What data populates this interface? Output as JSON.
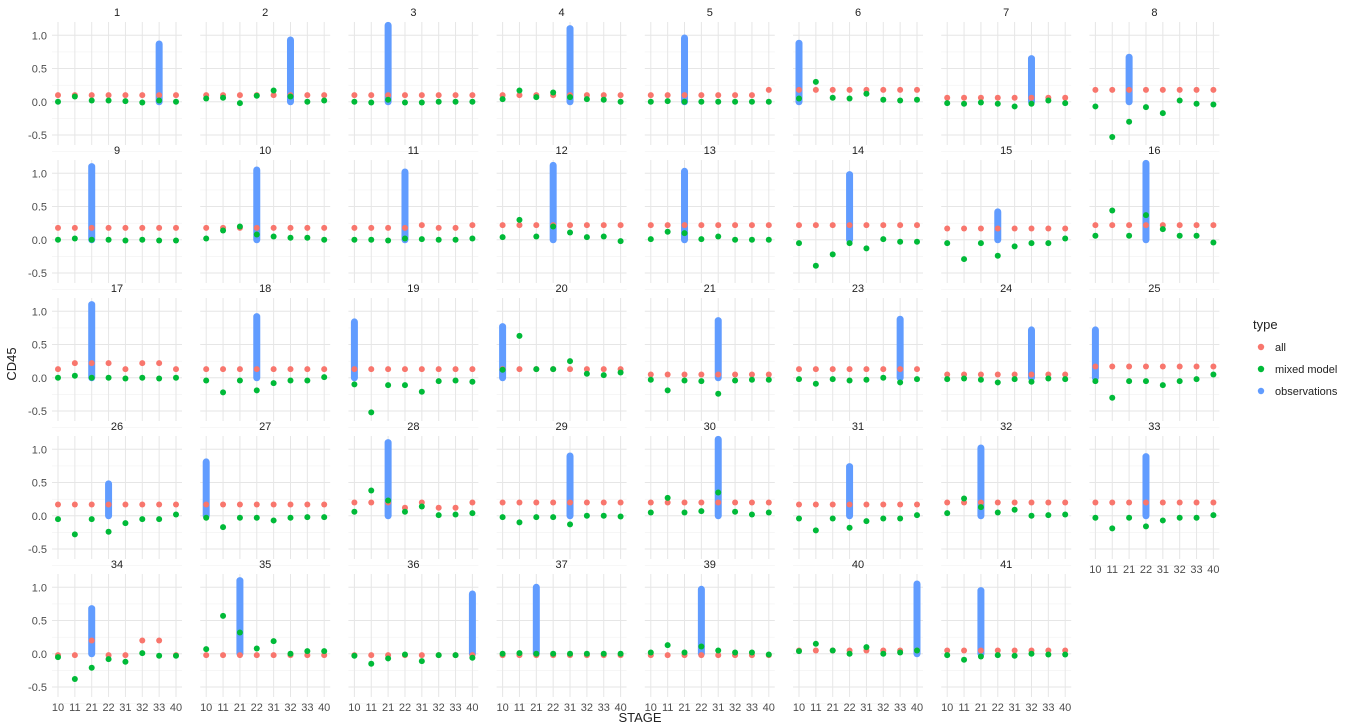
{
  "chart_data": {
    "type": "scatter",
    "xlabel": "STAGE",
    "ylabel": "CD45",
    "x_categories": [
      "10",
      "11",
      "21",
      "22",
      "31",
      "32",
      "33",
      "40"
    ],
    "y_ticks": [
      "-0.5",
      "0.0",
      "0.5",
      "1.0"
    ],
    "ylim": [
      -0.65,
      1.2
    ],
    "grid": true,
    "legend": {
      "title": "type",
      "position": "right",
      "entries": [
        {
          "label": "all",
          "color": "#F8766D"
        },
        {
          "label": "mixed model",
          "color": "#00BA38"
        },
        {
          "label": "observations",
          "color": "#619CFF"
        }
      ]
    },
    "facets": [
      {
        "label": "1",
        "obs_stage": "33",
        "obs_max": 0.87,
        "all": [
          0.1,
          0.1,
          0.1,
          0.1,
          0.1,
          0.1,
          0.1,
          0.1
        ],
        "mixed": [
          0.0,
          0.08,
          0.02,
          0.02,
          0.01,
          -0.01,
          0.02,
          0.0
        ]
      },
      {
        "label": "2",
        "obs_stage": "32",
        "obs_max": 0.93,
        "all": [
          0.1,
          0.1,
          0.1,
          0.1,
          0.1,
          0.1,
          0.1,
          0.1
        ],
        "mixed": [
          0.05,
          0.06,
          -0.02,
          0.09,
          0.17,
          0.08,
          0.0,
          0.02
        ]
      },
      {
        "label": "3",
        "obs_stage": "21",
        "obs_max": 1.15,
        "all": [
          0.1,
          0.1,
          0.1,
          0.1,
          0.1,
          0.1,
          0.1,
          0.1
        ],
        "mixed": [
          0.0,
          -0.01,
          0.03,
          -0.01,
          -0.01,
          0.0,
          0.0,
          0.0
        ]
      },
      {
        "label": "4",
        "obs_stage": "31",
        "obs_max": 1.1,
        "all": [
          0.1,
          0.1,
          0.1,
          0.1,
          0.1,
          0.1,
          0.1,
          0.1
        ],
        "mixed": [
          0.04,
          0.17,
          0.07,
          0.14,
          0.07,
          0.04,
          0.03,
          0.0
        ]
      },
      {
        "label": "5",
        "obs_stage": "21",
        "obs_max": 0.96,
        "all": [
          0.1,
          0.1,
          0.1,
          0.1,
          0.1,
          0.1,
          0.1,
          0.18
        ],
        "mixed": [
          0.0,
          0.01,
          0.0,
          0.0,
          0.0,
          0.0,
          0.0,
          0.0
        ]
      },
      {
        "label": "6",
        "obs_stage": "10",
        "obs_max": 0.88,
        "all": [
          0.18,
          0.18,
          0.18,
          0.18,
          0.18,
          0.18,
          0.18,
          0.18
        ],
        "mixed": [
          0.05,
          0.3,
          0.06,
          0.05,
          0.12,
          0.03,
          0.02,
          0.03
        ]
      },
      {
        "label": "7",
        "obs_stage": "32",
        "obs_max": 0.65,
        "all": [
          0.06,
          0.06,
          0.06,
          0.06,
          0.06,
          0.06,
          0.06,
          0.06
        ],
        "mixed": [
          -0.02,
          -0.03,
          -0.01,
          -0.03,
          -0.07,
          -0.03,
          0.02,
          -0.02
        ]
      },
      {
        "label": "8",
        "obs_stage": "21",
        "obs_max": 0.67,
        "all": [
          0.18,
          0.18,
          0.18,
          0.18,
          0.18,
          0.18,
          0.18,
          0.18
        ],
        "mixed": [
          -0.07,
          -0.53,
          -0.3,
          -0.08,
          -0.17,
          0.02,
          -0.03,
          -0.04
        ]
      },
      {
        "label": "9",
        "obs_stage": "21",
        "obs_max": 1.1,
        "all": [
          0.18,
          0.18,
          0.18,
          0.18,
          0.18,
          0.18,
          0.18,
          0.18
        ],
        "mixed": [
          0.0,
          0.02,
          0.0,
          0.0,
          -0.01,
          0.0,
          -0.01,
          -0.01
        ]
      },
      {
        "label": "10",
        "obs_stage": "22",
        "obs_max": 1.05,
        "all": [
          0.18,
          0.18,
          0.18,
          0.18,
          0.18,
          0.18,
          0.18,
          0.18
        ],
        "mixed": [
          0.02,
          0.14,
          0.2,
          0.08,
          0.05,
          0.03,
          0.03,
          0.0
        ]
      },
      {
        "label": "11",
        "obs_stage": "22",
        "obs_max": 1.02,
        "all": [
          0.18,
          0.18,
          0.18,
          0.18,
          0.22,
          0.18,
          0.18,
          0.22
        ],
        "mixed": [
          0.0,
          0.0,
          -0.01,
          0.02,
          0.01,
          0.0,
          0.0,
          0.02
        ]
      },
      {
        "label": "12",
        "obs_stage": "22",
        "obs_max": 1.12,
        "all": [
          0.22,
          0.22,
          0.22,
          0.22,
          0.22,
          0.22,
          0.22,
          0.22
        ],
        "mixed": [
          0.04,
          0.3,
          0.05,
          0.2,
          0.11,
          0.04,
          0.05,
          -0.02
        ]
      },
      {
        "label": "13",
        "obs_stage": "21",
        "obs_max": 1.03,
        "all": [
          0.22,
          0.22,
          0.22,
          0.22,
          0.22,
          0.22,
          0.22,
          0.22
        ],
        "mixed": [
          0.01,
          0.12,
          0.1,
          0.01,
          0.05,
          0.0,
          0.0,
          0.0
        ]
      },
      {
        "label": "14",
        "obs_stage": "22",
        "obs_max": 0.98,
        "all": [
          0.22,
          0.22,
          0.22,
          0.22,
          0.22,
          0.22,
          0.22,
          0.22
        ],
        "mixed": [
          -0.05,
          -0.39,
          -0.22,
          -0.05,
          -0.13,
          0.01,
          -0.03,
          -0.03
        ]
      },
      {
        "label": "15",
        "obs_stage": "22",
        "obs_max": 0.42,
        "all": [
          0.17,
          0.17,
          0.17,
          0.17,
          0.17,
          0.17,
          0.17,
          0.17
        ],
        "mixed": [
          -0.05,
          -0.29,
          -0.05,
          -0.24,
          -0.1,
          -0.05,
          -0.05,
          0.02
        ]
      },
      {
        "label": "16",
        "obs_stage": "22",
        "obs_max": 1.15,
        "all": [
          0.22,
          0.22,
          0.22,
          0.22,
          0.22,
          0.22,
          0.22,
          0.22
        ],
        "mixed": [
          0.06,
          0.44,
          0.06,
          0.37,
          0.16,
          0.06,
          0.06,
          -0.04
        ]
      },
      {
        "label": "17",
        "obs_stage": "21",
        "obs_max": 1.1,
        "all": [
          0.13,
          0.22,
          0.22,
          0.22,
          0.13,
          0.22,
          0.22,
          0.13
        ],
        "mixed": [
          0.0,
          0.03,
          0.0,
          0.0,
          -0.01,
          0.0,
          -0.01,
          0.0
        ]
      },
      {
        "label": "18",
        "obs_stage": "22",
        "obs_max": 0.92,
        "all": [
          0.13,
          0.13,
          0.13,
          0.13,
          0.13,
          0.13,
          0.13,
          0.13
        ],
        "mixed": [
          -0.04,
          -0.22,
          -0.04,
          -0.19,
          -0.08,
          -0.04,
          -0.04,
          0.01
        ]
      },
      {
        "label": "19",
        "obs_stage": "10",
        "obs_max": 0.84,
        "all": [
          0.13,
          0.13,
          0.13,
          0.13,
          0.13,
          0.13,
          0.13,
          0.13
        ],
        "mixed": [
          -0.1,
          -0.52,
          -0.11,
          -0.11,
          -0.21,
          -0.05,
          -0.04,
          -0.06
        ]
      },
      {
        "label": "20",
        "obs_stage": "10",
        "obs_max": 0.77,
        "all": [
          0.13,
          0.13,
          0.13,
          0.13,
          0.13,
          0.13,
          0.13,
          0.13
        ],
        "mixed": [
          0.12,
          0.63,
          0.13,
          0.13,
          0.25,
          0.06,
          0.04,
          0.08
        ]
      },
      {
        "label": "21",
        "obs_stage": "31",
        "obs_max": 0.86,
        "all": [
          0.05,
          0.05,
          0.05,
          0.05,
          0.05,
          0.05,
          0.05,
          0.05
        ],
        "mixed": [
          -0.03,
          -0.19,
          -0.04,
          -0.05,
          -0.24,
          -0.04,
          -0.03,
          -0.03
        ]
      },
      {
        "label": "23",
        "obs_stage": "33",
        "obs_max": 0.88,
        "all": [
          0.13,
          0.13,
          0.13,
          0.13,
          0.13,
          0.13,
          0.13,
          0.13
        ],
        "mixed": [
          -0.02,
          -0.09,
          -0.02,
          -0.04,
          -0.03,
          0.0,
          -0.07,
          -0.02
        ]
      },
      {
        "label": "24",
        "obs_stage": "32",
        "obs_max": 0.72,
        "all": [
          0.05,
          0.05,
          0.05,
          0.05,
          0.05,
          0.05,
          0.05,
          0.05
        ],
        "mixed": [
          -0.02,
          -0.01,
          -0.03,
          -0.07,
          -0.02,
          -0.06,
          -0.01,
          -0.02
        ]
      },
      {
        "label": "25",
        "obs_stage": "10",
        "obs_max": 0.72,
        "all": [
          0.17,
          0.17,
          0.17,
          0.17,
          0.17,
          0.17,
          0.17,
          0.17
        ],
        "mixed": [
          -0.05,
          -0.3,
          -0.05,
          -0.05,
          -0.11,
          -0.05,
          -0.02,
          0.05
        ]
      },
      {
        "label": "26",
        "obs_stage": "22",
        "obs_max": 0.48,
        "all": [
          0.17,
          0.17,
          0.17,
          0.17,
          0.17,
          0.17,
          0.17,
          0.17
        ],
        "mixed": [
          -0.05,
          -0.28,
          -0.05,
          -0.24,
          -0.11,
          -0.05,
          -0.05,
          0.02
        ]
      },
      {
        "label": "27",
        "obs_stage": "10",
        "obs_max": 0.81,
        "all": [
          0.17,
          0.17,
          0.17,
          0.17,
          0.17,
          0.17,
          0.17,
          0.17
        ],
        "mixed": [
          -0.03,
          -0.17,
          -0.03,
          -0.03,
          -0.07,
          -0.03,
          -0.02,
          -0.02
        ]
      },
      {
        "label": "28",
        "obs_stage": "21",
        "obs_max": 1.1,
        "all": [
          0.2,
          0.2,
          0.2,
          0.12,
          0.2,
          0.12,
          0.12,
          0.2
        ],
        "mixed": [
          0.06,
          0.38,
          0.23,
          0.06,
          0.14,
          0.01,
          0.02,
          0.04
        ]
      },
      {
        "label": "29",
        "obs_stage": "31",
        "obs_max": 0.9,
        "all": [
          0.2,
          0.2,
          0.2,
          0.2,
          0.2,
          0.2,
          0.2,
          0.2
        ],
        "mixed": [
          -0.02,
          -0.1,
          -0.02,
          -0.02,
          -0.13,
          0.0,
          0.0,
          -0.01
        ]
      },
      {
        "label": "30",
        "obs_stage": "31",
        "obs_max": 1.15,
        "all": [
          0.2,
          0.2,
          0.2,
          0.2,
          0.2,
          0.2,
          0.2,
          0.2
        ],
        "mixed": [
          0.05,
          0.27,
          0.05,
          0.07,
          0.35,
          0.06,
          0.02,
          0.05
        ]
      },
      {
        "label": "31",
        "obs_stage": "22",
        "obs_max": 0.74,
        "all": [
          0.17,
          0.17,
          0.17,
          0.17,
          0.17,
          0.17,
          0.17,
          0.17
        ],
        "mixed": [
          -0.04,
          -0.22,
          -0.04,
          -0.18,
          -0.08,
          -0.04,
          -0.04,
          0.01
        ]
      },
      {
        "label": "32",
        "obs_stage": "21",
        "obs_max": 1.02,
        "all": [
          0.2,
          0.2,
          0.2,
          0.2,
          0.2,
          0.2,
          0.2,
          0.2
        ],
        "mixed": [
          0.04,
          0.26,
          0.13,
          0.05,
          0.09,
          0.0,
          0.01,
          0.02
        ]
      },
      {
        "label": "33",
        "obs_stage": "22",
        "obs_max": 0.89,
        "all": [
          0.2,
          0.2,
          0.2,
          0.2,
          0.2,
          0.2,
          0.2,
          0.2
        ],
        "mixed": [
          -0.03,
          -0.19,
          -0.03,
          -0.16,
          -0.07,
          -0.03,
          -0.03,
          0.01
        ]
      },
      {
        "label": "34",
        "obs_stage": "21",
        "obs_max": 0.68,
        "all": [
          -0.02,
          -0.02,
          0.2,
          -0.02,
          -0.02,
          0.2,
          0.2,
          -0.02
        ],
        "mixed": [
          -0.05,
          -0.38,
          -0.21,
          -0.08,
          -0.12,
          0.01,
          -0.03,
          -0.03
        ]
      },
      {
        "label": "35",
        "obs_stage": "21",
        "obs_max": 1.1,
        "all": [
          -0.02,
          -0.02,
          -0.02,
          -0.02,
          -0.02,
          -0.02,
          -0.02,
          -0.02
        ],
        "mixed": [
          0.07,
          0.57,
          0.32,
          0.08,
          0.19,
          0.0,
          0.04,
          0.04
        ]
      },
      {
        "label": "36",
        "obs_stage": "40",
        "obs_max": 0.9,
        "all": [
          -0.02,
          -0.02,
          -0.02,
          -0.02,
          -0.02,
          -0.02,
          -0.02,
          -0.02
        ],
        "mixed": [
          -0.03,
          -0.15,
          -0.07,
          -0.01,
          -0.11,
          -0.02,
          -0.02,
          -0.06
        ]
      },
      {
        "label": "37",
        "obs_stage": "21",
        "obs_max": 1.0,
        "all": [
          -0.02,
          -0.02,
          -0.02,
          -0.02,
          -0.02,
          -0.02,
          -0.02,
          -0.02
        ],
        "mixed": [
          0.0,
          0.01,
          0.0,
          0.0,
          0.0,
          0.0,
          0.0,
          0.0
        ]
      },
      {
        "label": "39",
        "obs_stage": "22",
        "obs_max": 0.97,
        "all": [
          -0.02,
          -0.02,
          -0.02,
          -0.02,
          -0.02,
          -0.02,
          -0.02,
          -0.02
        ],
        "mixed": [
          0.02,
          0.13,
          0.02,
          0.11,
          0.05,
          0.02,
          0.02,
          -0.01
        ]
      },
      {
        "label": "40",
        "obs_stage": "40",
        "obs_max": 1.05,
        "all": [
          0.05,
          0.05,
          0.05,
          0.05,
          0.05,
          0.05,
          0.05,
          0.05
        ],
        "mixed": [
          0.04,
          0.15,
          0.05,
          0.0,
          0.1,
          0.0,
          0.02,
          0.05
        ]
      },
      {
        "label": "41",
        "obs_stage": "21",
        "obs_max": 0.95,
        "all": [
          0.05,
          0.05,
          0.05,
          0.05,
          0.05,
          0.05,
          0.05,
          0.05
        ],
        "mixed": [
          -0.02,
          -0.09,
          -0.04,
          -0.02,
          -0.03,
          0.0,
          -0.01,
          -0.01
        ]
      }
    ]
  }
}
